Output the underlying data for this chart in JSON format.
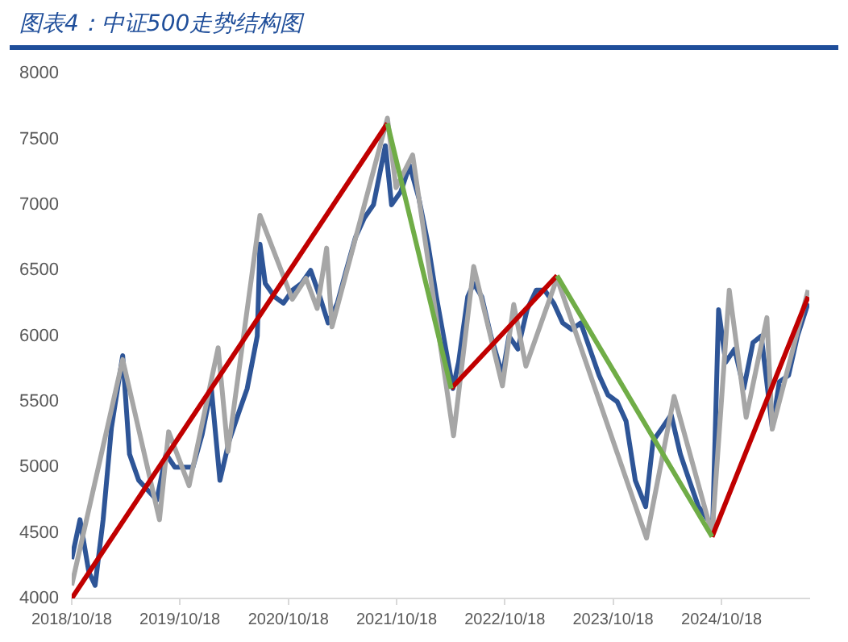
{
  "chart_data": {
    "type": "line",
    "title": "图表4：中证500走势结构图",
    "xlim": [
      "2018-10-18",
      "2025-08-10"
    ],
    "xticks": [
      {
        "value": "2018-10-18",
        "label": "2018/10/18"
      },
      {
        "value": "2019-10-18",
        "label": "2019/10/18"
      },
      {
        "value": "2020-10-18",
        "label": "2020/10/18"
      },
      {
        "value": "2021-10-18",
        "label": "2021/10/18"
      },
      {
        "value": "2022-10-18",
        "label": "2022/10/18"
      },
      {
        "value": "2023-10-18",
        "label": "2023/10/18"
      },
      {
        "value": "2024-10-18",
        "label": "2024/10/18"
      }
    ],
    "ylim": [
      4000,
      8000
    ],
    "yticks": [
      4000,
      4500,
      5000,
      5500,
      6000,
      6500,
      7000,
      7500,
      8000
    ],
    "grid": false,
    "legend": false,
    "marker": "none",
    "line_style": "solid",
    "series": [
      {
        "color": "#2e5597",
        "x": [
          "2018-10-18",
          "2018-11-15",
          "2018-12-15",
          "2019-01-05",
          "2019-02-01",
          "2019-03-01",
          "2019-04-08",
          "2019-05-01",
          "2019-06-01",
          "2019-08-01",
          "2019-09-01",
          "2019-10-01",
          "2019-12-01",
          "2020-01-01",
          "2020-02-01",
          "2020-03-01",
          "2020-04-01",
          "2020-05-01",
          "2020-06-01",
          "2020-07-05",
          "2020-07-14",
          "2020-08-01",
          "2020-09-01",
          "2020-10-01",
          "2020-11-01",
          "2020-12-01",
          "2021-01-01",
          "2021-02-01",
          "2021-03-01",
          "2021-04-01",
          "2021-05-01",
          "2021-06-01",
          "2021-07-01",
          "2021-08-01",
          "2021-09-10",
          "2021-10-01",
          "2021-11-01",
          "2021-12-01",
          "2022-01-01",
          "2022-02-01",
          "2022-03-01",
          "2022-04-26",
          "2022-05-15",
          "2022-06-15",
          "2022-07-05",
          "2022-08-01",
          "2022-09-01",
          "2022-10-10",
          "2022-11-01",
          "2022-12-01",
          "2023-01-01",
          "2023-02-01",
          "2023-03-01",
          "2023-04-01",
          "2023-05-01",
          "2023-06-01",
          "2023-07-01",
          "2023-08-01",
          "2023-09-01",
          "2023-10-01",
          "2023-11-01",
          "2023-12-01",
          "2024-01-01",
          "2024-02-05",
          "2024-03-01",
          "2024-04-01",
          "2024-05-01",
          "2024-06-01",
          "2024-07-01",
          "2024-08-01",
          "2024-09-18",
          "2024-10-08",
          "2024-11-01",
          "2024-12-01",
          "2025-01-01",
          "2025-02-01",
          "2025-03-01",
          "2025-04-07",
          "2025-05-01",
          "2025-06-01",
          "2025-07-01",
          "2025-08-06"
        ],
        "values": [
          4300,
          4600,
          4200,
          4100,
          4600,
          5300,
          5850,
          5100,
          4900,
          4750,
          5100,
          5000,
          5000,
          5250,
          5600,
          4900,
          5200,
          5400,
          5600,
          6000,
          6700,
          6400,
          6300,
          6250,
          6350,
          6400,
          6500,
          6300,
          6100,
          6250,
          6500,
          6750,
          6900,
          7000,
          7450,
          7000,
          7100,
          7300,
          7050,
          6700,
          6300,
          5600,
          5800,
          6300,
          6400,
          6300,
          6000,
          5700,
          6000,
          5900,
          6200,
          6350,
          6350,
          6250,
          6100,
          6050,
          6100,
          5900,
          5700,
          5550,
          5500,
          5350,
          4900,
          4700,
          5200,
          5300,
          5400,
          5100,
          4900,
          4700,
          4550,
          6200,
          5800,
          5900,
          5600,
          5950,
          6000,
          5300,
          5650,
          5700,
          6000,
          6250
        ]
      },
      {
        "color": "#a6a6a6",
        "x": [
          "2018-10-18",
          "2019-04-08",
          "2019-08-10",
          "2019-09-10",
          "2019-11-18",
          "2020-02-24",
          "2020-03-28",
          "2020-07-14",
          "2020-10-31",
          "2020-12-16",
          "2021-01-23",
          "2021-02-24",
          "2021-03-14",
          "2021-09-17",
          "2021-10-16",
          "2021-12-11",
          "2022-04-28",
          "2022-07-05",
          "2022-10-10",
          "2022-11-17",
          "2022-12-28",
          "2023-04-12",
          "2024-02-08",
          "2024-05-11",
          "2024-09-16",
          "2024-11-13",
          "2025-01-09",
          "2025-03-20",
          "2025-04-07",
          "2025-08-06"
        ],
        "values": [
          4100,
          5820,
          4600,
          5270,
          4860,
          5910,
          5120,
          6920,
          6280,
          6440,
          6210,
          6670,
          6070,
          7660,
          7130,
          7380,
          5240,
          6530,
          5620,
          6240,
          5770,
          6440,
          4460,
          5540,
          4490,
          6350,
          5380,
          6140,
          5290,
          6350
        ]
      },
      {
        "color": "#c00000",
        "x": [
          "2018-10-18",
          "2021-09-17",
          "2022-01-01",
          "2022-04-20",
          "2023-04-12",
          "2024-01-01",
          "2024-09-16",
          "2025-08-06"
        ],
        "values": [
          4000,
          7620,
          null,
          5600,
          6460,
          null,
          4470,
          6300
        ]
      },
      {
        "color": "#70ad47",
        "x": [
          "2021-09-17",
          "2022-04-20",
          "2023-01-01",
          "2023-04-12",
          "2024-09-16"
        ],
        "values": [
          7620,
          5600,
          null,
          6460,
          4470
        ]
      }
    ]
  }
}
